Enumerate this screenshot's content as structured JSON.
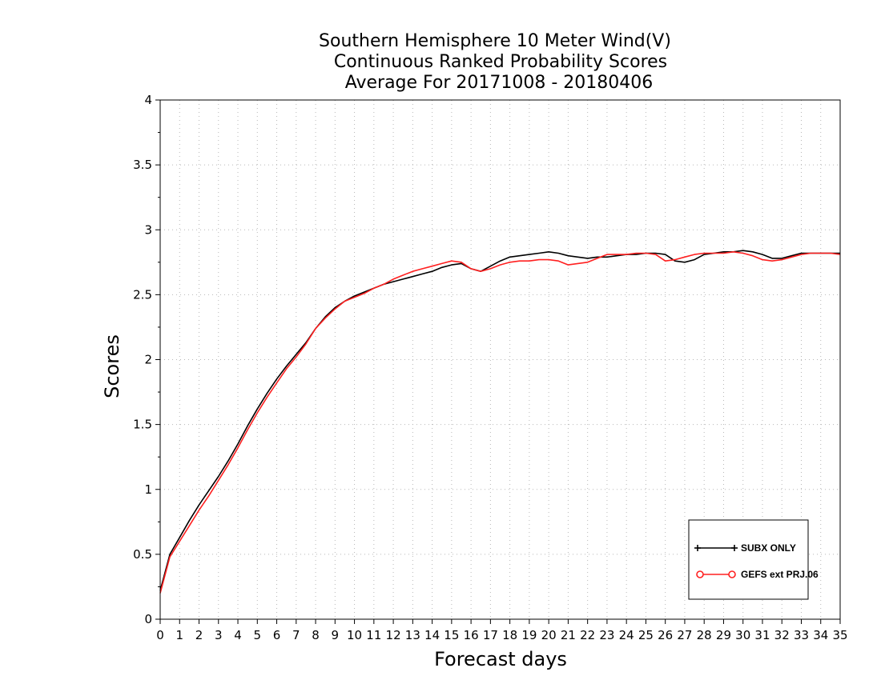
{
  "chart_data": {
    "type": "line",
    "title": [
      "Southern Hemisphere 10 Meter Wind(V)",
      "Continuous Ranked Probability Scores",
      "Average For 20171008 - 20180406"
    ],
    "xlabel": "Forecast days",
    "ylabel": "Scores",
    "xlim": [
      0,
      35
    ],
    "ylim": [
      0,
      4
    ],
    "xticks": [
      0,
      1,
      2,
      3,
      4,
      5,
      6,
      7,
      8,
      9,
      10,
      11,
      12,
      13,
      14,
      15,
      16,
      17,
      18,
      19,
      20,
      21,
      22,
      23,
      24,
      25,
      26,
      27,
      28,
      29,
      30,
      31,
      32,
      33,
      34,
      35
    ],
    "yticks": [
      0,
      0.5,
      1,
      1.5,
      2,
      2.5,
      3,
      3.5,
      4
    ],
    "ytick_labels": [
      "0",
      "0.5",
      "1",
      "1.5",
      "2",
      "2.5",
      "3",
      "3.5",
      "4"
    ],
    "grid": true,
    "legend_position": "bottom-right",
    "series": [
      {
        "name": "SUBX ONLY",
        "color": "#000000",
        "marker": "plus",
        "x": [
          0,
          0.5,
          1,
          1.5,
          2,
          2.5,
          3,
          3.5,
          4,
          4.5,
          5,
          5.5,
          6,
          6.5,
          7,
          7.5,
          8,
          8.5,
          9,
          9.5,
          10,
          10.5,
          11,
          11.5,
          12,
          12.5,
          13,
          13.5,
          14,
          14.5,
          15,
          15.5,
          16,
          16.5,
          17,
          17.5,
          18,
          18.5,
          19,
          19.5,
          20,
          20.5,
          21,
          21.5,
          22,
          22.5,
          23,
          23.5,
          24,
          24.5,
          25,
          25.5,
          26,
          26.5,
          27,
          27.5,
          28,
          28.5,
          29,
          29.5,
          30,
          30.5,
          31,
          31.5,
          32,
          32.5,
          33,
          33.5,
          34,
          34.5,
          35
        ],
        "y": [
          0.22,
          0.5,
          0.63,
          0.76,
          0.88,
          0.99,
          1.1,
          1.22,
          1.35,
          1.49,
          1.62,
          1.74,
          1.85,
          1.95,
          2.04,
          2.13,
          2.24,
          2.33,
          2.4,
          2.45,
          2.49,
          2.52,
          2.55,
          2.58,
          2.6,
          2.62,
          2.64,
          2.66,
          2.68,
          2.71,
          2.73,
          2.74,
          2.7,
          2.68,
          2.72,
          2.76,
          2.79,
          2.8,
          2.81,
          2.82,
          2.83,
          2.82,
          2.8,
          2.79,
          2.78,
          2.79,
          2.79,
          2.8,
          2.81,
          2.81,
          2.82,
          2.82,
          2.81,
          2.76,
          2.75,
          2.77,
          2.81,
          2.82,
          2.83,
          2.83,
          2.84,
          2.83,
          2.81,
          2.78,
          2.78,
          2.8,
          2.82,
          2.82,
          2.82,
          2.82,
          2.82
        ]
      },
      {
        "name": "GEFS ext PRJ.06",
        "color": "#ff2020",
        "marker": "circle",
        "x": [
          0,
          0.5,
          1,
          1.5,
          2,
          2.5,
          3,
          3.5,
          4,
          4.5,
          5,
          5.5,
          6,
          6.5,
          7,
          7.5,
          8,
          8.5,
          9,
          9.5,
          10,
          10.5,
          11,
          11.5,
          12,
          12.5,
          13,
          13.5,
          14,
          14.5,
          15,
          15.5,
          16,
          16.5,
          17,
          17.5,
          18,
          18.5,
          19,
          19.5,
          20,
          20.5,
          21,
          21.5,
          22,
          22.5,
          23,
          23.5,
          24,
          24.5,
          25,
          25.5,
          26,
          26.5,
          27,
          27.5,
          28,
          28.5,
          29,
          29.5,
          30,
          30.5,
          31,
          31.5,
          32,
          32.5,
          33,
          33.5,
          34,
          34.5,
          35
        ],
        "y": [
          0.2,
          0.48,
          0.6,
          0.72,
          0.84,
          0.95,
          1.07,
          1.19,
          1.32,
          1.46,
          1.59,
          1.71,
          1.82,
          1.93,
          2.02,
          2.12,
          2.24,
          2.32,
          2.39,
          2.45,
          2.48,
          2.51,
          2.55,
          2.58,
          2.62,
          2.65,
          2.68,
          2.7,
          2.72,
          2.74,
          2.76,
          2.75,
          2.7,
          2.68,
          2.7,
          2.73,
          2.75,
          2.76,
          2.76,
          2.77,
          2.77,
          2.76,
          2.73,
          2.74,
          2.75,
          2.78,
          2.81,
          2.81,
          2.81,
          2.82,
          2.82,
          2.81,
          2.76,
          2.77,
          2.79,
          2.81,
          2.82,
          2.82,
          2.82,
          2.83,
          2.82,
          2.8,
          2.77,
          2.76,
          2.77,
          2.79,
          2.81,
          2.82,
          2.82,
          2.82,
          2.81
        ]
      }
    ]
  }
}
